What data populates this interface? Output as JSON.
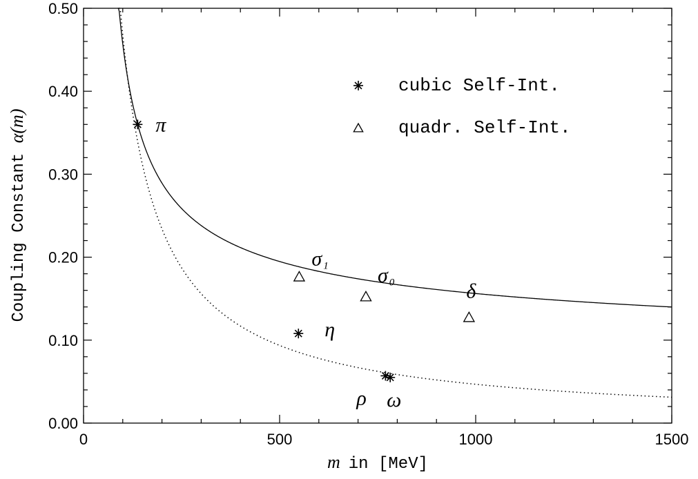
{
  "chart_data": {
    "type": "scatter",
    "xlabel_italic": "m",
    "xlabel_rest": "in [MeV]",
    "ylabel_prefix": "Coupling Constant ",
    "ylabel_italic": "α(m)",
    "xlim": [
      0,
      1500
    ],
    "ylim": [
      0,
      0.5
    ],
    "xticks": [
      {
        "value": 0,
        "label": "0"
      },
      {
        "value": 500,
        "label": "500"
      },
      {
        "value": 1000,
        "label": "1000"
      },
      {
        "value": 1500,
        "label": "1500"
      }
    ],
    "yticks": [
      {
        "value": 0.0,
        "label": "0.00"
      },
      {
        "value": 0.1,
        "label": "0.10"
      },
      {
        "value": 0.2,
        "label": "0.20"
      },
      {
        "value": 0.3,
        "label": "0.30"
      },
      {
        "value": 0.4,
        "label": "0.40"
      },
      {
        "value": 0.5,
        "label": "0.50"
      }
    ],
    "grid": false,
    "legend_position": "top-right",
    "series": [
      {
        "name": "cubic Self-Int.",
        "marker": "asterisk",
        "points": [
          {
            "x": 138,
            "y": 0.36,
            "label": "π",
            "sub": ""
          },
          {
            "x": 548,
            "y": 0.108,
            "label": "η",
            "sub": ""
          },
          {
            "x": 770,
            "y": 0.057,
            "label": "ρ",
            "sub": ""
          },
          {
            "x": 782,
            "y": 0.055,
            "label": "ω",
            "sub": ""
          }
        ]
      },
      {
        "name": "quadr. Self-Int.",
        "marker": "triangle",
        "points": [
          {
            "x": 550,
            "y": 0.176,
            "label": "σ",
            "sub": "1"
          },
          {
            "x": 720,
            "y": 0.152,
            "label": "σ",
            "sub": "0"
          },
          {
            "x": 983,
            "y": 0.127,
            "label": "δ",
            "sub": ""
          }
        ]
      }
    ],
    "curves": [
      {
        "style": "solid",
        "form": "a/(1+b*ln(m/c))",
        "a": 0.36,
        "b": 0.659,
        "c": 138,
        "x_start": 65,
        "x_end": 1500
      },
      {
        "style": "dotted",
        "form": "k/m",
        "k": 46.8,
        "x_start": 90,
        "x_end": 1500
      }
    ]
  }
}
